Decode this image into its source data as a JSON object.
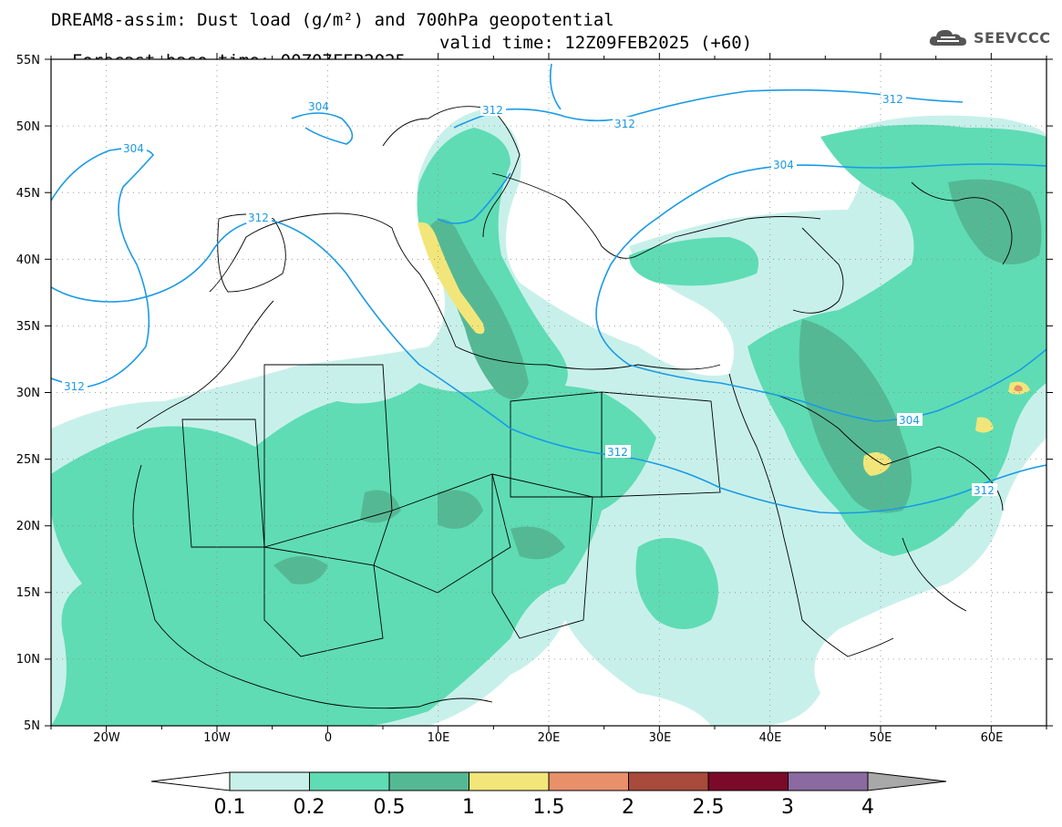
{
  "header": {
    "title_line1": "DREAM8-assim: Dust load (g/m²) and 700hPa geopotential",
    "forecast_base": "Forecast base time: 00Z07FEB2025",
    "valid_time": "valid time: 12Z09FEB2025 (+60)",
    "logo_text": "SEEVCCC"
  },
  "map": {
    "lat_labels": [
      "55N",
      "50N",
      "45N",
      "40N",
      "35N",
      "30N",
      "25N",
      "20N",
      "15N",
      "10N",
      "5N"
    ],
    "lon_labels": [
      "20W",
      "10W",
      "0",
      "10E",
      "20E",
      "30E",
      "40E",
      "50E",
      "60E"
    ],
    "contour_labels": [
      "304",
      "312",
      "304",
      "312",
      "312",
      "312",
      "304",
      "312",
      "312",
      "304",
      "312"
    ]
  },
  "colorbar": {
    "labels": [
      "0.1",
      "0.2",
      "0.5",
      "1",
      "1.5",
      "2",
      "2.5",
      "3",
      "4"
    ],
    "colors": [
      "#c8f0ea",
      "#5fdcb4",
      "#55b894",
      "#f2e67a",
      "#e8906a",
      "#a84a3c",
      "#7a0a28",
      "#8a6aa0"
    ],
    "over_color": "#a8a8a8",
    "under_color": "#ffffff"
  },
  "colors": {
    "contour": "#1a9ae6",
    "border": "#000000"
  }
}
